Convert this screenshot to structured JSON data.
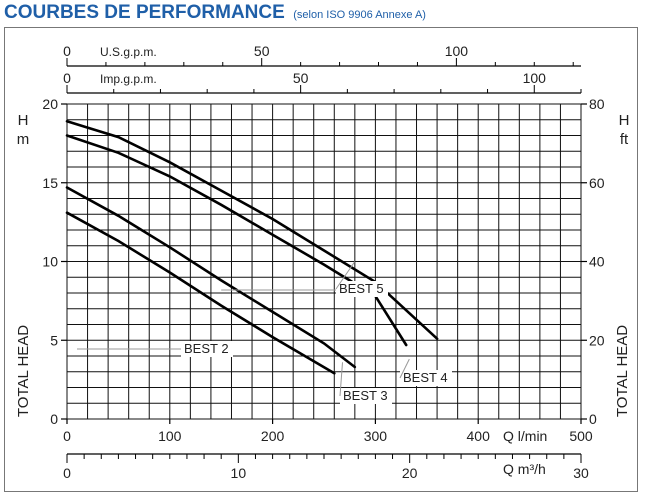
{
  "heading": {
    "title": "COURBES DE PERFORMANCE",
    "subtitle": "(selon ISO 9906 Annexe A)"
  },
  "chart_data": {
    "type": "line",
    "xlabel": "Q l/min",
    "xlim": [
      0,
      500
    ],
    "xticks": [
      0,
      100,
      200,
      300,
      400,
      500
    ],
    "ylabel_left": "H m",
    "ylabel_left_side": "TOTAL HEAD",
    "ylim": [
      0,
      20
    ],
    "yticks": [
      0,
      5,
      10,
      15,
      20
    ],
    "ylabel_right": "H ft",
    "ylabel_right_side": "TOTAL HEAD",
    "ylim_right": [
      0,
      80
    ],
    "yticks_right": [
      0,
      20,
      40,
      60,
      80
    ],
    "secondary_x_bottom": {
      "label": "Q m³/h",
      "lim": [
        0,
        30
      ],
      "ticks": [
        0,
        10,
        20,
        30
      ]
    },
    "top_axis_usgpm": {
      "label": "U.S.g.p.m.",
      "lim": [
        0,
        132
      ],
      "ticks": [
        0,
        50,
        100
      ]
    },
    "top_axis_impgpm": {
      "label": "Imp.g.p.m.",
      "lim": [
        0,
        110
      ],
      "ticks": [
        0,
        50,
        100
      ]
    },
    "grid": true,
    "series": [
      {
        "name": "BEST 2",
        "x": [
          0,
          50,
          100,
          150,
          200,
          260
        ],
        "y": [
          13.1,
          11.3,
          9.3,
          7.2,
          5.2,
          2.9
        ]
      },
      {
        "name": "BEST 3",
        "x": [
          0,
          50,
          100,
          150,
          200,
          250,
          280
        ],
        "y": [
          14.7,
          12.9,
          10.9,
          8.8,
          6.8,
          4.8,
          3.3
        ]
      },
      {
        "name": "BEST 4",
        "x": [
          0,
          50,
          100,
          150,
          200,
          250,
          300,
          330
        ],
        "y": [
          18.0,
          16.9,
          15.4,
          13.6,
          11.7,
          9.8,
          7.8,
          4.7
        ]
      },
      {
        "name": "BEST 5",
        "x": [
          0,
          50,
          100,
          150,
          200,
          250,
          300,
          360
        ],
        "y": [
          18.9,
          17.9,
          16.3,
          14.5,
          12.7,
          10.7,
          8.7,
          5.1
        ]
      }
    ]
  }
}
